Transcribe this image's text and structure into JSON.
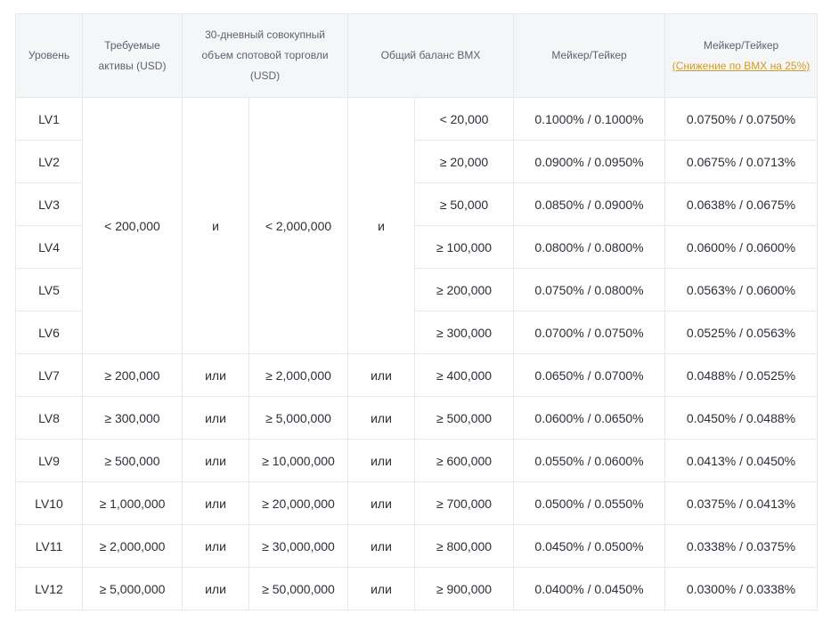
{
  "table": {
    "headers": {
      "level": "Уровень",
      "assets": "Требуемые активы (USD)",
      "volume": "30-дневный совокупный объем спотовой торговли (USD)",
      "bmx_balance": "Общий баланс BMX",
      "maker_taker": "Мейкер/Тейкер",
      "maker_taker_discount_title": "Мейкер/Тейкер",
      "maker_taker_discount_note": "(Снижение по BMX на 25%)"
    },
    "merged": {
      "assets": "< 200,000",
      "conj1": "и",
      "volume": "< 2,000,000",
      "conj2": "и"
    },
    "rows": [
      {
        "level": "LV1",
        "assets": "",
        "conj1": "",
        "volume": "",
        "conj2": "",
        "balance": "< 20,000",
        "fee": "0.1000% / 0.1000%",
        "fee_bmx": "0.0750% / 0.0750%"
      },
      {
        "level": "LV2",
        "assets": "",
        "conj1": "",
        "volume": "",
        "conj2": "",
        "balance": "≥ 20,000",
        "fee": "0.0900% / 0.0950%",
        "fee_bmx": "0.0675% / 0.0713%"
      },
      {
        "level": "LV3",
        "assets": "",
        "conj1": "",
        "volume": "",
        "conj2": "",
        "balance": "≥ 50,000",
        "fee": "0.0850% / 0.0900%",
        "fee_bmx": "0.0638% / 0.0675%"
      },
      {
        "level": "LV4",
        "assets": "",
        "conj1": "",
        "volume": "",
        "conj2": "",
        "balance": "≥ 100,000",
        "fee": "0.0800% / 0.0800%",
        "fee_bmx": "0.0600% / 0.0600%"
      },
      {
        "level": "LV5",
        "assets": "",
        "conj1": "",
        "volume": "",
        "conj2": "",
        "balance": "≥ 200,000",
        "fee": "0.0750% / 0.0800%",
        "fee_bmx": "0.0563% / 0.0600%"
      },
      {
        "level": "LV6",
        "assets": "",
        "conj1": "",
        "volume": "",
        "conj2": "",
        "balance": "≥ 300,000",
        "fee": "0.0700% / 0.0750%",
        "fee_bmx": "0.0525% / 0.0563%"
      },
      {
        "level": "LV7",
        "assets": "≥ 200,000",
        "conj1": "или",
        "volume": "≥ 2,000,000",
        "conj2": "или",
        "balance": "≥ 400,000",
        "fee": "0.0650% / 0.0700%",
        "fee_bmx": "0.0488% / 0.0525%"
      },
      {
        "level": "LV8",
        "assets": "≥ 300,000",
        "conj1": "или",
        "volume": "≥ 5,000,000",
        "conj2": "или",
        "balance": "≥ 500,000",
        "fee": "0.0600% / 0.0650%",
        "fee_bmx": "0.0450% / 0.0488%"
      },
      {
        "level": "LV9",
        "assets": "≥ 500,000",
        "conj1": "или",
        "volume": "≥ 10,000,000",
        "conj2": "или",
        "balance": "≥ 600,000",
        "fee": "0.0550% / 0.0600%",
        "fee_bmx": "0.0413% / 0.0450%"
      },
      {
        "level": "LV10",
        "assets": "≥ 1,000,000",
        "conj1": "или",
        "volume": "≥ 20,000,000",
        "conj2": "или",
        "balance": "≥ 700,000",
        "fee": "0.0500% / 0.0550%",
        "fee_bmx": "0.0375% / 0.0413%"
      },
      {
        "level": "LV11",
        "assets": "≥ 2,000,000",
        "conj1": "или",
        "volume": "≥ 30,000,000",
        "conj2": "или",
        "balance": "≥ 800,000",
        "fee": "0.0450% / 0.0500%",
        "fee_bmx": "0.0338% / 0.0375%"
      },
      {
        "level": "LV12",
        "assets": "≥ 5,000,000",
        "conj1": "или",
        "volume": "≥ 50,000,000",
        "conj2": "или",
        "balance": "≥ 900,000",
        "fee": "0.0400% / 0.0450%",
        "fee_bmx": "0.0300% / 0.0338%"
      }
    ]
  }
}
